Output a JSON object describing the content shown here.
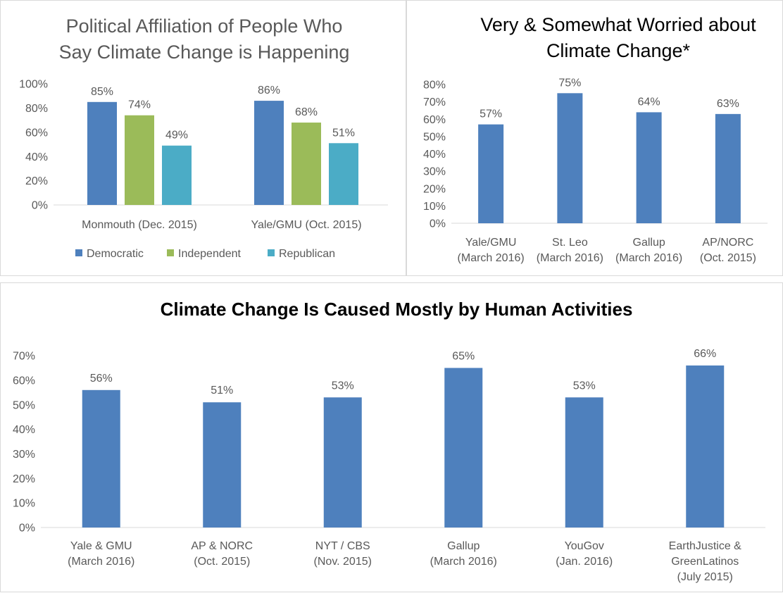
{
  "colors": {
    "democratic": "#4e80bd",
    "independent": "#9bbb59",
    "republican": "#4bacc6",
    "bar": "#4e80bd",
    "axis": "#d9d9d9",
    "text": "#595959",
    "title_light": "#595959",
    "title_dark": "#000000"
  },
  "chart_data": [
    {
      "type": "bar",
      "title": "Political Affiliation of People Who Say Climate Change is Happening",
      "title_lines": [
        "Political Affiliation of People Who",
        "Say Climate Change is Happening"
      ],
      "categories": [
        "Monmouth (Dec. 2015)",
        "Yale/GMU (Oct. 2015)"
      ],
      "series": [
        {
          "name": "Democratic",
          "values": [
            85,
            86
          ],
          "labels": [
            "85%",
            "86%"
          ]
        },
        {
          "name": "Independent",
          "values": [
            74,
            68
          ],
          "labels": [
            "74%",
            "68%"
          ]
        },
        {
          "name": "Republican",
          "values": [
            49,
            51
          ],
          "labels": [
            "49%",
            "51%"
          ]
        }
      ],
      "ylim": [
        0,
        100
      ],
      "yticks": [
        "0%",
        "20%",
        "40%",
        "60%",
        "80%",
        "100%"
      ],
      "legend": "bottom",
      "grid": false
    },
    {
      "type": "bar",
      "title": "Very & Somewhat Worried about Climate Change*",
      "title_lines": [
        "Very & Somewhat Worried about",
        "Climate Change*"
      ],
      "categories": [
        "Yale/GMU (March 2016)",
        "St. Leo (March 2016)",
        "Gallup (March 2016)",
        "AP/NORC (Oct. 2015)"
      ],
      "category_lines": [
        [
          "Yale/GMU",
          "(March 2016)"
        ],
        [
          "St. Leo",
          "(March 2016)"
        ],
        [
          "Gallup",
          "(March 2016)"
        ],
        [
          "AP/NORC",
          "(Oct. 2015)"
        ]
      ],
      "values": [
        57,
        75,
        64,
        63
      ],
      "labels": [
        "57%",
        "75%",
        "64%",
        "63%"
      ],
      "ylim": [
        0,
        80
      ],
      "yticks": [
        "0%",
        "10%",
        "20%",
        "30%",
        "40%",
        "50%",
        "60%",
        "70%",
        "80%"
      ],
      "grid": false
    },
    {
      "type": "bar",
      "title": "Climate Change Is Caused Mostly by Human Activities",
      "categories": [
        "Yale & GMU (March 2016)",
        "AP & NORC (Oct. 2015)",
        "NYT / CBS (Nov. 2015)",
        "Gallup (March 2016)",
        "YouGov (Jan. 2016)",
        "EarthJustice & GreenLatinos (July 2015)"
      ],
      "category_lines": [
        [
          "Yale & GMU",
          "(March 2016)"
        ],
        [
          "AP & NORC",
          "(Oct. 2015)"
        ],
        [
          "NYT / CBS",
          "(Nov. 2015)"
        ],
        [
          "Gallup",
          "(March 2016)"
        ],
        [
          "YouGov",
          "(Jan. 2016)"
        ],
        [
          "EarthJustice &",
          "GreenLatinos",
          "(July 2015)"
        ]
      ],
      "values": [
        56,
        51,
        53,
        65,
        53,
        66
      ],
      "labels": [
        "56%",
        "51%",
        "53%",
        "65%",
        "53%",
        "66%"
      ],
      "ylim": [
        0,
        70
      ],
      "yticks": [
        "0%",
        "10%",
        "20%",
        "30%",
        "40%",
        "50%",
        "60%",
        "70%"
      ],
      "grid": false
    }
  ]
}
